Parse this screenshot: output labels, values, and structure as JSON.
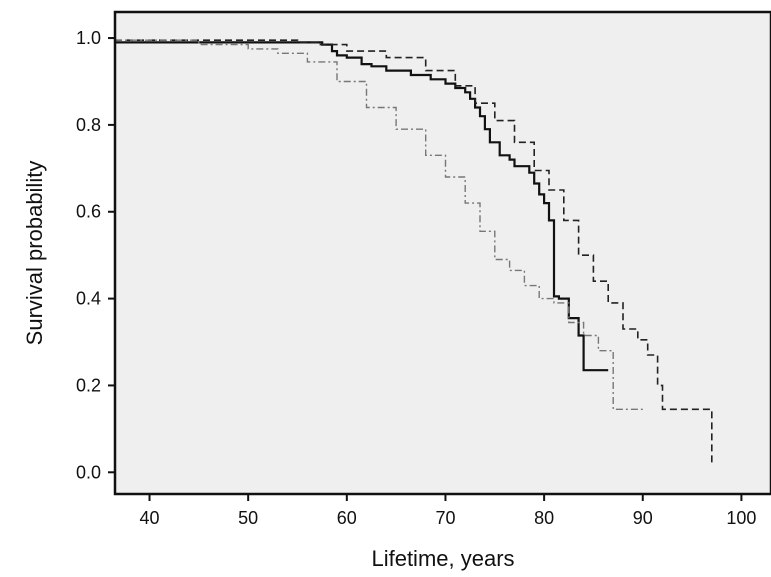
{
  "chart_data": {
    "type": "line",
    "title": "",
    "xlabel": "Lifetime, years",
    "ylabel": "Survival probability",
    "xlim": [
      36.5,
      103
    ],
    "ylim": [
      -0.05,
      1.06
    ],
    "xticks": [
      40,
      50,
      60,
      70,
      80,
      90,
      100
    ],
    "yticks": [
      0.0,
      0.2,
      0.4,
      0.6,
      0.8,
      1.0
    ],
    "ytick_labels": [
      "0.0",
      "0.2",
      "0.4",
      "0.6",
      "0.8",
      "1.0"
    ],
    "grid": false,
    "legend": "none",
    "background": "#efefef",
    "series": [
      {
        "style": "solid",
        "color": "#111111",
        "x": [
          36.5,
          55.5,
          57.5,
          58.5,
          59.0,
          60.0,
          61.5,
          62.5,
          64.0,
          66.5,
          68.5,
          70.0,
          71.0,
          72.0,
          72.5,
          73.0,
          73.5,
          74.0,
          74.5,
          75.5,
          76.5,
          77.0,
          78.5,
          79.0,
          79.5,
          80.0,
          80.5,
          81.0,
          81.5,
          82.5,
          83.5,
          84.0,
          86.5
        ],
        "y": [
          0.99,
          0.99,
          0.985,
          0.97,
          0.96,
          0.955,
          0.94,
          0.935,
          0.925,
          0.915,
          0.905,
          0.895,
          0.885,
          0.875,
          0.86,
          0.84,
          0.82,
          0.79,
          0.76,
          0.73,
          0.72,
          0.705,
          0.69,
          0.665,
          0.64,
          0.62,
          0.58,
          0.405,
          0.4,
          0.355,
          0.315,
          0.235,
          0.235
        ]
      },
      {
        "style": "dashed",
        "color": "#222222",
        "x": [
          36.5,
          55.0,
          57.0,
          60.0,
          64.0,
          68.0,
          71.0,
          73.0,
          75.0,
          77.0,
          79.0,
          80.5,
          82.0,
          83.5,
          85.0,
          86.5,
          88.0,
          89.5,
          90.5,
          91.5,
          92.0,
          97.0,
          97.0
        ],
        "y": [
          0.995,
          0.99,
          0.985,
          0.97,
          0.955,
          0.925,
          0.89,
          0.85,
          0.81,
          0.76,
          0.695,
          0.65,
          0.58,
          0.5,
          0.44,
          0.39,
          0.33,
          0.305,
          0.27,
          0.2,
          0.145,
          0.145,
          0.015
        ]
      },
      {
        "style": "dashdot",
        "color": "#777777",
        "x": [
          36.5,
          45.0,
          50.0,
          53.0,
          56.0,
          59.0,
          62.0,
          65.0,
          68.0,
          70.0,
          72.0,
          73.5,
          75.0,
          76.5,
          78.0,
          79.5,
          81.0,
          82.5,
          84.0,
          85.5,
          87.0,
          88.0,
          90.0
        ],
        "y": [
          0.995,
          0.985,
          0.975,
          0.965,
          0.945,
          0.9,
          0.84,
          0.79,
          0.73,
          0.68,
          0.62,
          0.555,
          0.49,
          0.465,
          0.43,
          0.4,
          0.39,
          0.345,
          0.315,
          0.28,
          0.145,
          0.145,
          0.145
        ]
      }
    ]
  }
}
